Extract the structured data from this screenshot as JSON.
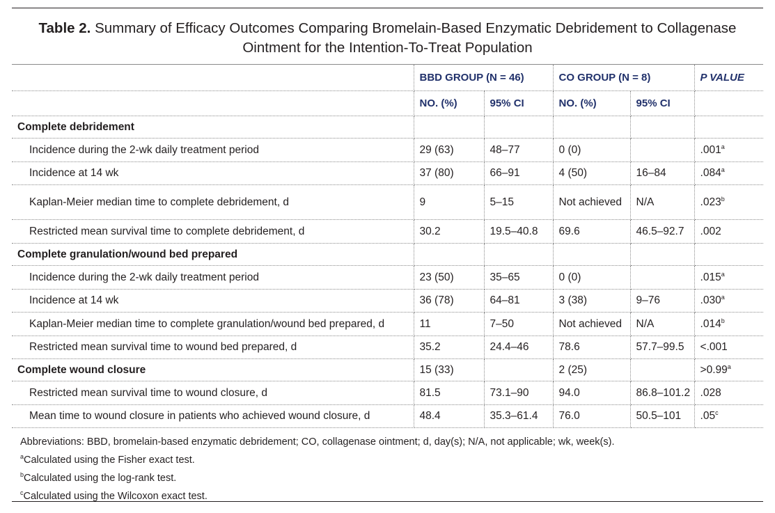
{
  "title": {
    "lead": "Table 2.",
    "text": "Summary of Efficacy Outcomes Comparing Bromelain-Based Enzymatic Debridement to Collagenase Ointment for the Intention-To-Treat Population"
  },
  "header": {
    "bbd_group": "BBD GROUP (N = 46)",
    "co_group": "CO GROUP (N = 8)",
    "p_value": "P VALUE",
    "bbd_no": "NO. (%)",
    "bbd_ci": "95% CI",
    "co_no": "NO. (%)",
    "co_ci": "95% CI"
  },
  "sections": {
    "debridement": "Complete debridement",
    "granulation": "Complete granulation/wound bed prepared",
    "closure": "Complete wound closure"
  },
  "rows": {
    "r1": {
      "label": "Incidence during the 2-wk daily treatment period",
      "bbd_no": "29 (63)",
      "bbd_ci": "48–77",
      "co_no": "0 (0)",
      "co_ci": "",
      "p": ".001",
      "p_note": "a"
    },
    "r2": {
      "label": "Incidence at 14 wk",
      "bbd_no": "37 (80)",
      "bbd_ci": "66–91",
      "co_no": "4 (50)",
      "co_ci": "16–84",
      "p": ".084",
      "p_note": "a"
    },
    "r3": {
      "label": "Kaplan-Meier median time to complete debridement, d",
      "bbd_no": "9",
      "bbd_ci": "5–15",
      "co_no": "Not achieved",
      "co_ci": "N/A",
      "p": ".023",
      "p_note": "b"
    },
    "r4": {
      "label": "Restricted mean survival time to complete debridement, d",
      "bbd_no": "30.2",
      "bbd_ci": "19.5–40.8",
      "co_no": "69.6",
      "co_ci": "46.5–92.7",
      "p": ".002",
      "p_note": ""
    },
    "r5": {
      "label": "Incidence during the 2-wk daily treatment period",
      "bbd_no": "23 (50)",
      "bbd_ci": "35–65",
      "co_no": "0 (0)",
      "co_ci": "",
      "p": ".015",
      "p_note": "a"
    },
    "r6": {
      "label": "Incidence at 14 wk",
      "bbd_no": "36 (78)",
      "bbd_ci": "64–81",
      "co_no": "3 (38)",
      "co_ci": "9–76",
      "p": ".030",
      "p_note": "a"
    },
    "r7": {
      "label": "Kaplan-Meier median time to complete granulation/wound bed prepared, d",
      "bbd_no": "11",
      "bbd_ci": "7–50",
      "co_no": "Not achieved",
      "co_ci": "N/A",
      "p": ".014",
      "p_note": "b"
    },
    "r8": {
      "label": "Restricted mean survival time to wound bed prepared, d",
      "bbd_no": "35.2",
      "bbd_ci": "24.4–46",
      "co_no": "78.6",
      "co_ci": "57.7–99.5",
      "p": "<.001",
      "p_note": ""
    },
    "r9": {
      "label": "Complete wound closure",
      "bbd_no": "15 (33)",
      "bbd_ci": "",
      "co_no": "2 (25)",
      "co_ci": "",
      "p": ">0.99",
      "p_note": "a"
    },
    "r10": {
      "label": "Restricted mean survival time to wound closure, d",
      "bbd_no": "81.5",
      "bbd_ci": "73.1–90",
      "co_no": "94.0",
      "co_ci": "86.8–101.2",
      "p": ".028",
      "p_note": ""
    },
    "r11": {
      "label": "Mean time to wound closure in patients who achieved wound closure, d",
      "bbd_no": "48.4",
      "bbd_ci": "35.3–61.4",
      "co_no": "76.0",
      "co_ci": "50.5–101",
      "p": ".05",
      "p_note": "c"
    }
  },
  "footnotes": {
    "abbreviations": "Abbreviations: BBD, bromelain-based enzymatic debridement; CO, collagenase ointment; d, day(s); N/A, not applicable; wk, week(s).",
    "a_mark": "a",
    "a_text": "Calculated using the Fisher exact test.",
    "b_mark": "b",
    "b_text": "Calculated using the log-rank test.",
    "c_mark": "c",
    "c_text": "Calculated using the Wilcoxon exact test."
  }
}
